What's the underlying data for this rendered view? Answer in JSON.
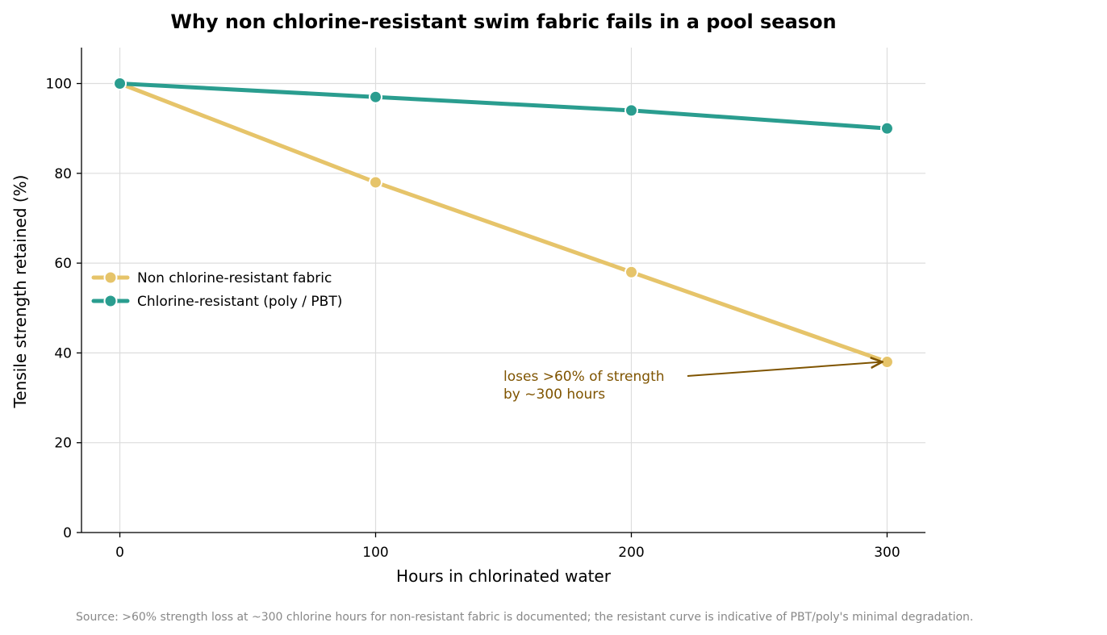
{
  "chart_data": {
    "type": "line",
    "title": "Why non chlorine-resistant swim fabric fails in a pool season",
    "xlabel": "Hours in chlorinated water",
    "ylabel": "Tensile strength retained (%)",
    "x": [
      0,
      100,
      200,
      300
    ],
    "xlim": [
      -15,
      315
    ],
    "ylim": [
      0,
      108
    ],
    "xticks": [
      0,
      100,
      200,
      300
    ],
    "yticks": [
      0,
      20,
      40,
      60,
      80,
      100
    ],
    "grid": true,
    "legend_position": "center-left",
    "series": [
      {
        "name": "Non chlorine-resistant fabric",
        "values": [
          100,
          78,
          58,
          38
        ],
        "color": "#e6c46a"
      },
      {
        "name": "Chlorine-resistant (poly / PBT)",
        "values": [
          100,
          97,
          94,
          90
        ],
        "color": "#2a9d8f"
      }
    ],
    "annotation": {
      "lines": [
        "loses >60% of strength",
        "by ~300 hours"
      ],
      "target": {
        "x": 300,
        "y": 38
      },
      "color": "#7f5400"
    },
    "source": "Source: >60% strength loss at ~300 chlorine hours for non-resistant fabric is documented; the resistant curve is indicative of PBT/poly's minimal degradation."
  }
}
